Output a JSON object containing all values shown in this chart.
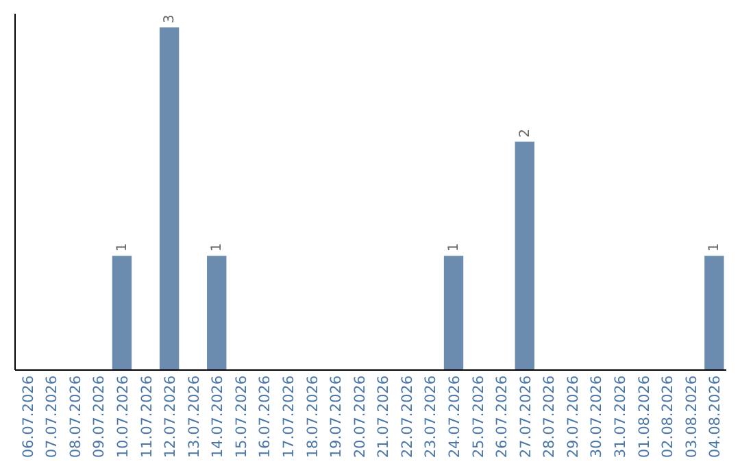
{
  "chart_data": {
    "type": "bar",
    "categories": [
      "06.07.2026",
      "07.07.2026",
      "08.07.2026",
      "09.07.2026",
      "10.07.2026",
      "11.07.2026",
      "12.07.2026",
      "13.07.2026",
      "14.07.2026",
      "15.07.2026",
      "16.07.2026",
      "17.07.2026",
      "18.07.2026",
      "19.07.2026",
      "20.07.2026",
      "21.07.2026",
      "22.07.2026",
      "23.07.2026",
      "24.07.2026",
      "25.07.2026",
      "26.07.2026",
      "27.07.2026",
      "28.07.2026",
      "29.07.2026",
      "30.07.2026",
      "31.07.2026",
      "01.08.2026",
      "02.08.2026",
      "03.08.2026",
      "04.08.2026"
    ],
    "values": [
      0,
      0,
      0,
      0,
      1,
      0,
      3,
      0,
      1,
      0,
      0,
      0,
      0,
      0,
      0,
      0,
      0,
      0,
      1,
      0,
      0,
      2,
      0,
      0,
      0,
      0,
      0,
      0,
      0,
      1
    ],
    "value_labels": [
      null,
      null,
      null,
      null,
      "1",
      null,
      "3",
      null,
      "1",
      null,
      null,
      null,
      null,
      null,
      null,
      null,
      null,
      null,
      "1",
      null,
      null,
      "2",
      null,
      null,
      null,
      null,
      null,
      null,
      null,
      "1"
    ],
    "color": "#6b8cae",
    "tick_labels": "x"
  }
}
